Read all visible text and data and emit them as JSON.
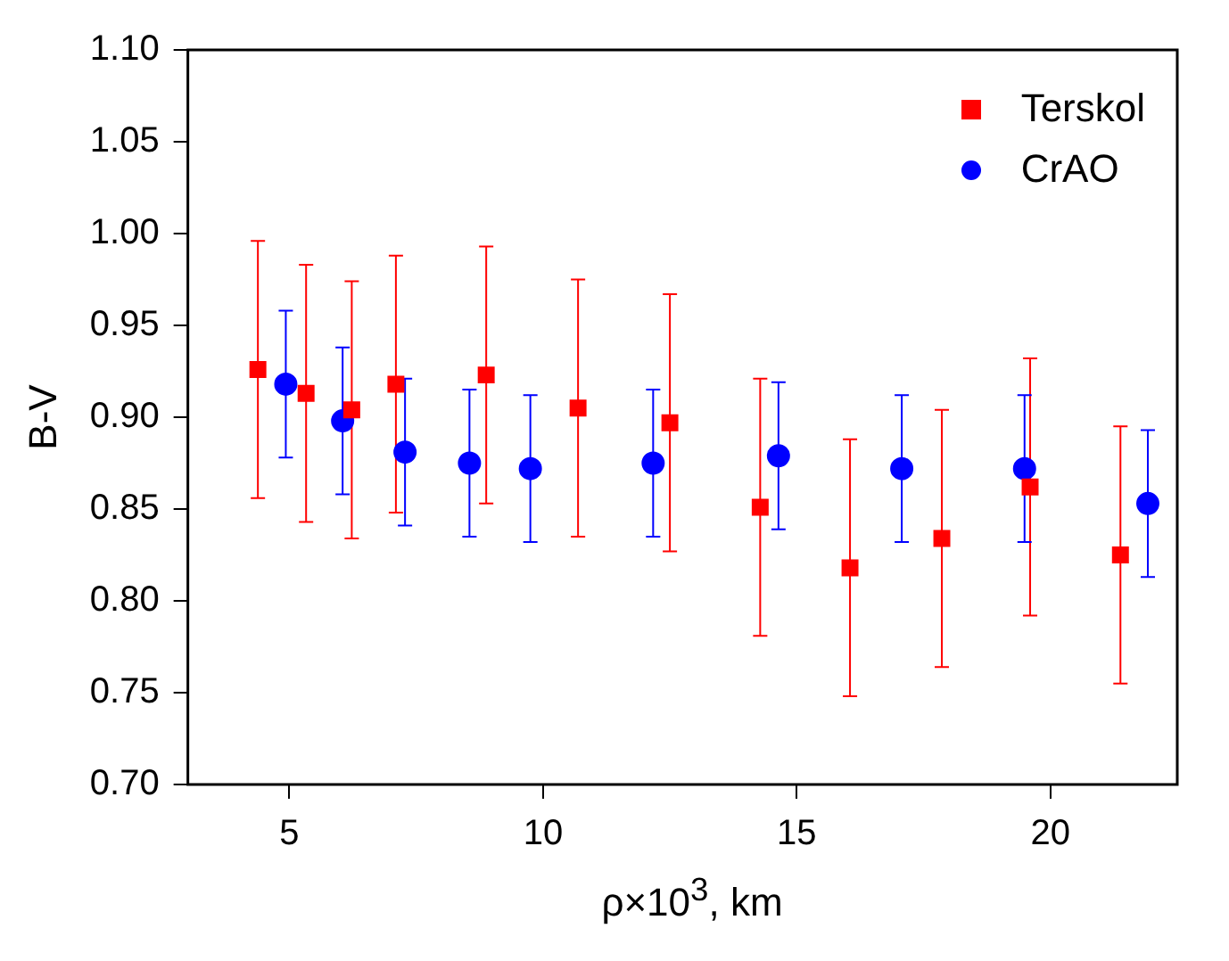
{
  "chart_data": {
    "type": "scatter",
    "xlabel": "ρ×10$^{3}$, km",
    "ylabel": "B-V",
    "xlim": [
      3,
      22.5
    ],
    "xticks": [
      5,
      10,
      15,
      20
    ],
    "ylim": [
      0.7,
      1.1
    ],
    "yticks": [
      {
        "value": 0.7,
        "label": "0.70"
      },
      0.75,
      {
        "value": 0.8,
        "label": "0.80"
      },
      0.85,
      {
        "value": 0.9,
        "label": "0.90"
      },
      0.95,
      {
        "value": 1,
        "label": "1.00"
      },
      1.05,
      {
        "value": 1.1,
        "label": "1.10"
      }
    ],
    "grid": false,
    "legend": "top right",
    "series": [
      {
        "name": "Terskol",
        "color": "#ff0000",
        "marker": "square",
        "x": [
          4.38,
          5.33,
          6.23,
          7.1,
          8.88,
          10.69,
          12.5,
          14.28,
          16.05,
          17.86,
          19.6,
          21.38
        ],
        "values": [
          0.926,
          0.913,
          0.904,
          0.918,
          0.923,
          0.905,
          0.897,
          0.851,
          0.818,
          0.834,
          0.862,
          0.825
        ],
        "errors": [
          0.07,
          0.07,
          0.07,
          0.07,
          0.07,
          0.07,
          0.07,
          0.07,
          0.07,
          0.07,
          0.07,
          0.07
        ]
      },
      {
        "name": "CrAO",
        "color": "#0000ff",
        "marker": "circle",
        "x": [
          4.93,
          6.05,
          7.28,
          8.55,
          9.75,
          12.17,
          14.64,
          17.07,
          19.49,
          21.92
        ],
        "values": [
          0.918,
          0.898,
          0.881,
          0.875,
          0.872,
          0.875,
          0.879,
          0.872,
          0.872,
          0.853
        ],
        "errors": [
          0.04,
          0.04,
          0.04,
          0.04,
          0.04,
          0.04,
          0.04,
          0.04,
          0.04,
          0.04
        ]
      }
    ]
  }
}
